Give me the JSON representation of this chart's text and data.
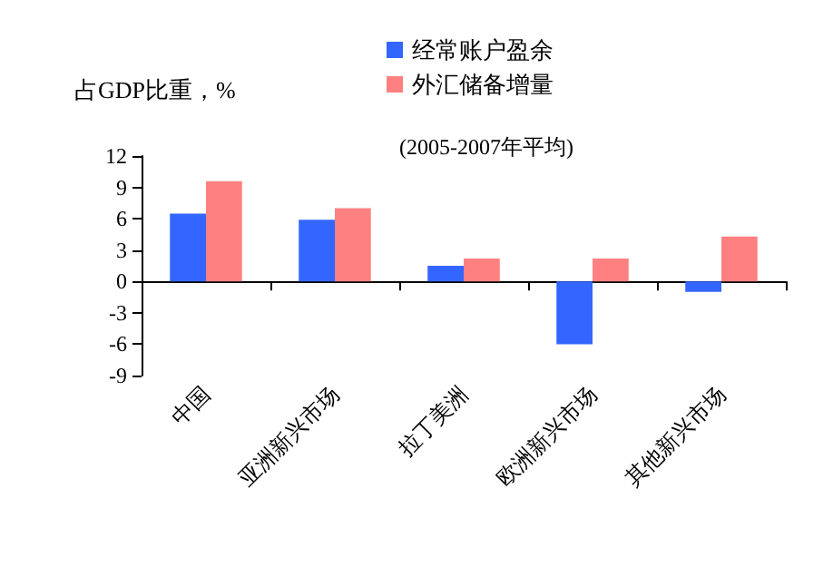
{
  "chart_data": {
    "type": "bar",
    "ylabel": "占GDP比重，%",
    "subtitle": "(2005-2007年平均)",
    "categories": [
      "中国",
      "亚洲新兴市场",
      "拉丁美洲",
      "欧洲新兴市场",
      "其他新兴市场"
    ],
    "series": [
      {
        "name": "经常账户盈余",
        "color": "#3366ff",
        "values": [
          6.5,
          5.9,
          1.5,
          -6.0,
          -1.0
        ]
      },
      {
        "name": "外汇储备增量",
        "color": "#ff8080",
        "values": [
          9.6,
          7.0,
          2.2,
          2.2,
          4.3
        ]
      }
    ],
    "ylim": [
      -9,
      12
    ],
    "yticks": [
      -9,
      -6,
      -3,
      0,
      3,
      6,
      9,
      12
    ],
    "legend": "top"
  }
}
